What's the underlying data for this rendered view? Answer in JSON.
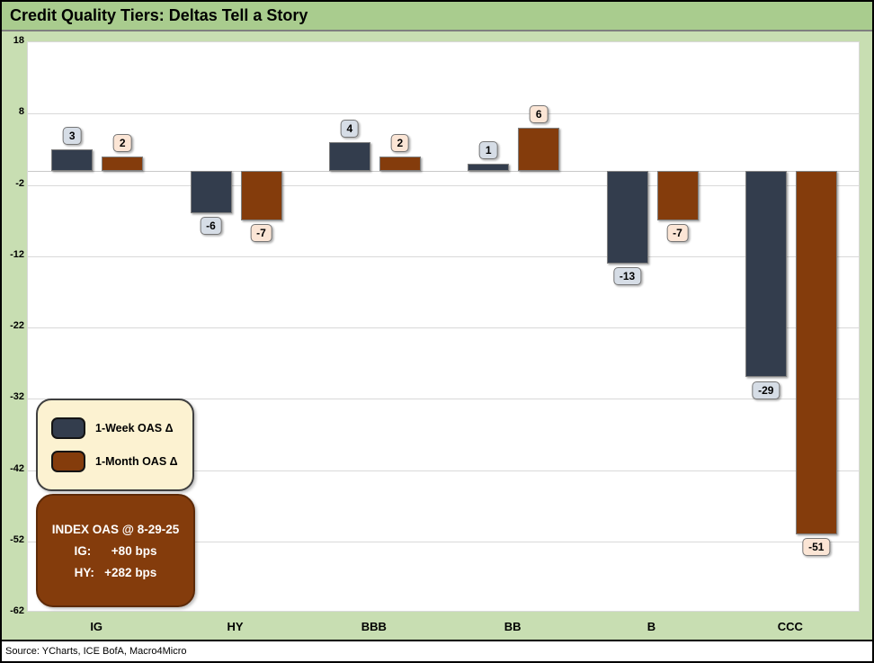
{
  "title": "Credit Quality Tiers: Deltas Tell a Story",
  "source": "Source: YCharts, ICE BofA, Macro4Micro",
  "colors": {
    "background": "#c8deb2",
    "title_band": "#a9cc8e",
    "week_bar": "#333d4d",
    "month_bar": "#843c0c",
    "week_value_label_bg": "#d6dde6",
    "month_value_label_bg": "#fbe5d5",
    "legend_bg": "#fcf2d1",
    "index_box_bg": "#843c0c",
    "gridline": "#d9d9d9"
  },
  "legend": {
    "items": [
      {
        "label": "1-Week OAS Δ",
        "color": "#333d4d"
      },
      {
        "label": "1-Month OAS Δ",
        "color": "#843c0c"
      }
    ]
  },
  "index_box": {
    "title": "INDEX OAS @ 8-29-25",
    "lines": [
      "IG:      +80 bps",
      "HY:   +282 bps"
    ]
  },
  "chart_data": {
    "type": "bar",
    "title": "Credit Quality Tiers: Deltas Tell a Story",
    "categories": [
      "IG",
      "HY",
      "BBB",
      "BB",
      "B",
      "CCC"
    ],
    "series": [
      {
        "name": "1-Week OAS Δ",
        "color": "#333d4d",
        "value_label_bg": "#d6dde6",
        "values": [
          3,
          -6,
          4,
          1,
          -13,
          -29
        ]
      },
      {
        "name": "1-Month OAS Δ",
        "color": "#843c0c",
        "value_label_bg": "#fbe5d5",
        "values": [
          2,
          -7,
          2,
          6,
          -7,
          -51
        ]
      }
    ],
    "xlabel": "",
    "ylabel": "",
    "ylim": [
      -62,
      18
    ],
    "yticks": [
      18,
      8,
      -2,
      -12,
      -22,
      -32,
      -42,
      -52,
      -62
    ],
    "grid": true,
    "legend_position": "inside-bottom-left",
    "value_labels": true
  }
}
